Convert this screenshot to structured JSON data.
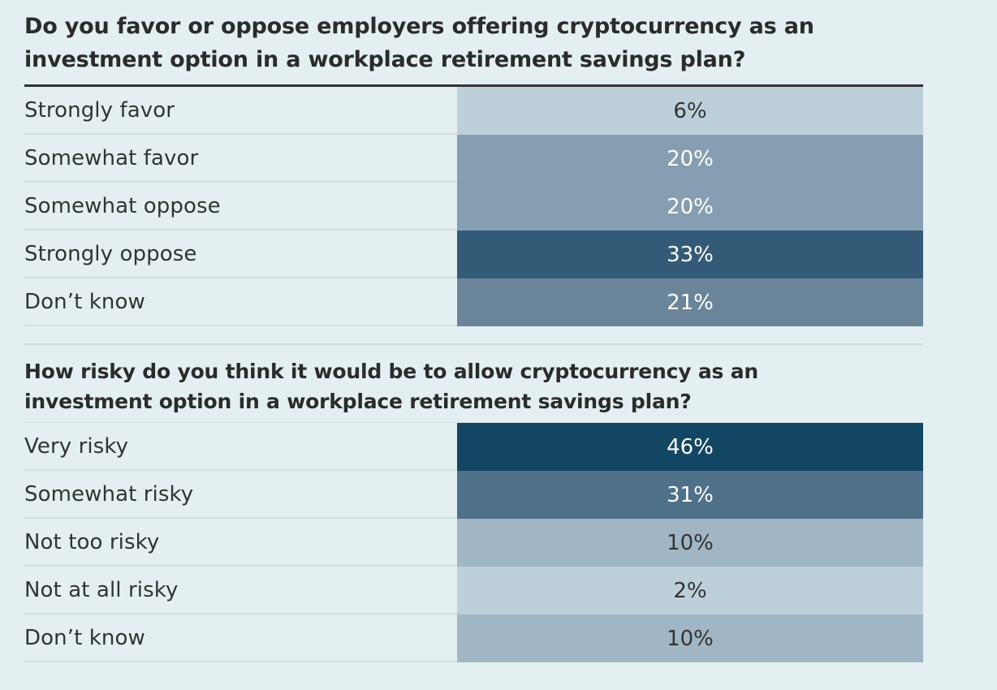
{
  "chart_data": [
    {
      "type": "table",
      "title": "Do you favor or oppose employers offering cryptocurrency as an investment option in a workplace retirement savings plan?",
      "categories": [
        "Strongly favor",
        "Somewhat favor",
        "Somewhat oppose",
        "Strongly oppose",
        "Don’t know"
      ],
      "values": [
        6,
        20,
        20,
        33,
        21
      ],
      "value_labels": [
        "6%",
        "20%",
        "20%",
        "33%",
        "21%"
      ],
      "unit": "%"
    },
    {
      "type": "table",
      "title": "How risky do you think it would be to allow cryptocurrency as an investment option in a workplace retirement savings plan?",
      "categories": [
        "Very risky",
        "Somewhat risky",
        "Not too risky",
        "Not at all risky",
        "Don’t know"
      ],
      "values": [
        46,
        31,
        10,
        2,
        10
      ],
      "value_labels": [
        "46%",
        "31%",
        "10%",
        "2%",
        "10%"
      ],
      "unit": "%"
    }
  ],
  "colors": {
    "background": "#e3eff0",
    "scale": [
      "#bdd0da",
      "#a0b6c4",
      "#869eb1",
      "#6a8599",
      "#4e7089",
      "#335b78",
      "#124663"
    ],
    "text_dark": "#333333",
    "text_light": "#ffffff"
  }
}
